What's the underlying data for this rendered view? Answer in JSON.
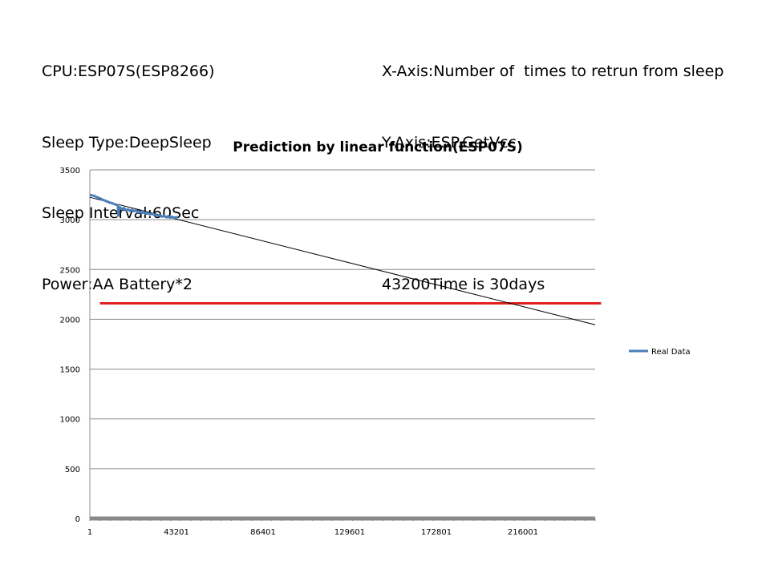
{
  "info_left": [
    "CPU:ESP07S(ESP8266)",
    "Sleep Type:DeepSleep",
    "Sleep Interval:60Sec",
    "Power:AA Battery*2"
  ],
  "info_right": [
    "X-Axis:Number of  times to retrun from sleep",
    "Y-Axis:ESP.GetVcc",
    "",
    "43200Time is 30days"
  ],
  "chart_data": {
    "type": "line",
    "title": "Prediction by linear function(ESP07S)",
    "xlabel": "",
    "ylabel": "",
    "xlim": [
      1,
      252000
    ],
    "ylim": [
      0,
      3500
    ],
    "x_ticks": [
      1,
      43201,
      86401,
      129601,
      172801,
      216001
    ],
    "x_tick_labels": [
      "1",
      "43201",
      "86401",
      "129601",
      "172801",
      "216001"
    ],
    "y_ticks": [
      0,
      500,
      1000,
      1500,
      2000,
      2500,
      3000,
      3500
    ],
    "y_tick_labels": [
      "0",
      "500",
      "1000",
      "1500",
      "2000",
      "2500",
      "3000",
      "3500"
    ],
    "grid": true,
    "legend_position": "right",
    "series": [
      {
        "name": "Real Data",
        "color": "#4a7ebb",
        "x": [
          1,
          1000,
          2000,
          3000,
          4000,
          5000,
          6000,
          7000,
          8000,
          9000,
          10000,
          11000,
          12000,
          13000,
          14000,
          14200,
          14600,
          15000,
          16000,
          17000,
          18000,
          19000,
          20000,
          21000,
          22000,
          23000,
          24000,
          25000,
          26000,
          27000,
          28000,
          29000,
          30000,
          31000,
          32000,
          33000,
          34000,
          35000,
          36000,
          37000,
          38000,
          39000,
          40000,
          41000,
          42000,
          43000,
          44000
        ],
        "y": [
          3250,
          3245,
          3240,
          3232,
          3222,
          3215,
          3205,
          3195,
          3188,
          3180,
          3172,
          3165,
          3160,
          3150,
          3145,
          3040,
          3110,
          3125,
          3105,
          3118,
          3092,
          3105,
          3088,
          3100,
          3085,
          3095,
          3070,
          3080,
          3068,
          3075,
          3060,
          3065,
          3055,
          3058,
          3050,
          3052,
          3040,
          3045,
          3030,
          3040,
          3025,
          3035,
          3020,
          3030,
          3018,
          3025,
          3022
        ]
      }
    ],
    "trendline": {
      "x": [
        1,
        252000
      ],
      "y": [
        3225,
        1945
      ],
      "color": "#000000"
    },
    "threshold": {
      "y": 2160,
      "x_start": 5000,
      "x_end": 255000,
      "color": "#e02020"
    },
    "baseline_color": "#888888"
  }
}
